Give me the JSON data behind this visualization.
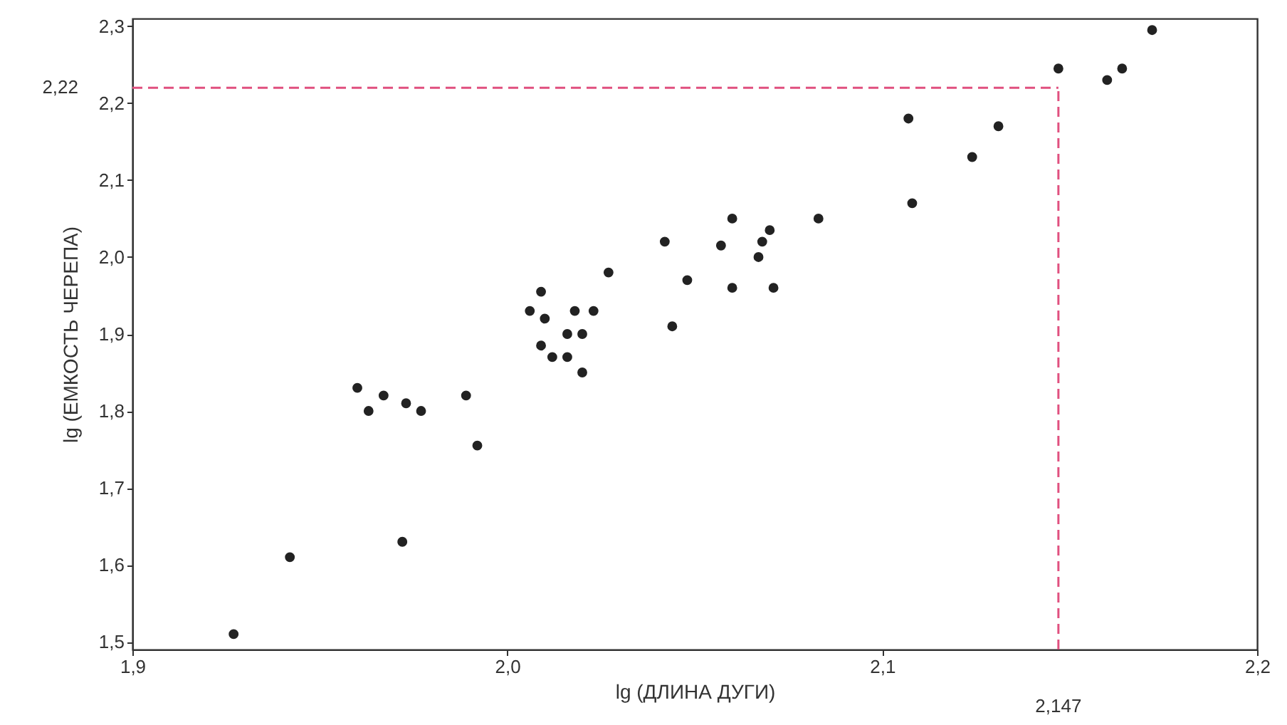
{
  "chart_data": {
    "type": "scatter",
    "xlabel": "lg (ДЛИНА ДУГИ)",
    "ylabel": "lg (ЕМКОСТЬ ЧЕРЕПА)",
    "x": [
      1.927,
      1.942,
      1.96,
      1.963,
      1.967,
      1.973,
      1.977,
      1.972,
      1.989,
      1.992,
      2.006,
      2.009,
      2.01,
      2.009,
      2.012,
      2.016,
      2.016,
      2.02,
      2.018,
      2.023,
      2.02,
      2.027,
      2.042,
      2.048,
      2.044,
      2.06,
      2.057,
      2.07,
      2.068,
      2.067,
      2.06,
      2.071,
      2.083,
      2.107,
      2.108,
      2.124,
      2.131,
      2.147,
      2.16,
      2.164,
      2.172
    ],
    "series": [
      {
        "color": "#222222",
        "values": [
          1.51,
          1.61,
          1.83,
          1.8,
          1.82,
          1.81,
          1.8,
          1.63,
          1.82,
          1.755,
          1.93,
          1.955,
          1.92,
          1.885,
          1.87,
          1.87,
          1.9,
          1.9,
          1.93,
          1.93,
          1.85,
          1.98,
          2.02,
          1.97,
          1.91,
          2.05,
          2.015,
          2.035,
          2.02,
          2.0,
          1.96,
          1.96,
          2.05,
          2.18,
          2.07,
          2.13,
          2.17,
          2.245,
          2.23,
          2.245,
          2.295
        ]
      }
    ],
    "xlim": [
      1.9,
      2.2
    ],
    "ylim": [
      1.49,
      2.31
    ],
    "xticks": [
      {
        "value": 1.9,
        "label": "1,9"
      },
      {
        "value": 2.0,
        "label": "2,0"
      },
      {
        "value": 2.1,
        "label": "2,1"
      },
      {
        "value": 2.2,
        "label": "2,2"
      }
    ],
    "yticks": [
      {
        "value": 1.5,
        "label": "1,5"
      },
      {
        "value": 1.6,
        "label": "1,6"
      },
      {
        "value": 1.7,
        "label": "1,7"
      },
      {
        "value": 1.8,
        "label": "1,8"
      },
      {
        "value": 1.9,
        "label": "1,9"
      },
      {
        "value": 2.0,
        "label": "2,0"
      },
      {
        "value": 2.1,
        "label": "2,1"
      },
      {
        "value": 2.2,
        "label": "2,2"
      },
      {
        "value": 2.3,
        "label": "2,3"
      }
    ],
    "ref_lines": [
      {
        "axis": "y",
        "value": 2.22,
        "label": "2,22",
        "color": "#e0507f",
        "line_style": "dashed"
      },
      {
        "axis": "x",
        "value": 2.147,
        "label": "2,147",
        "color": "#e0507f",
        "line_style": "dashed"
      }
    ],
    "grid": false,
    "marker": "circle"
  }
}
